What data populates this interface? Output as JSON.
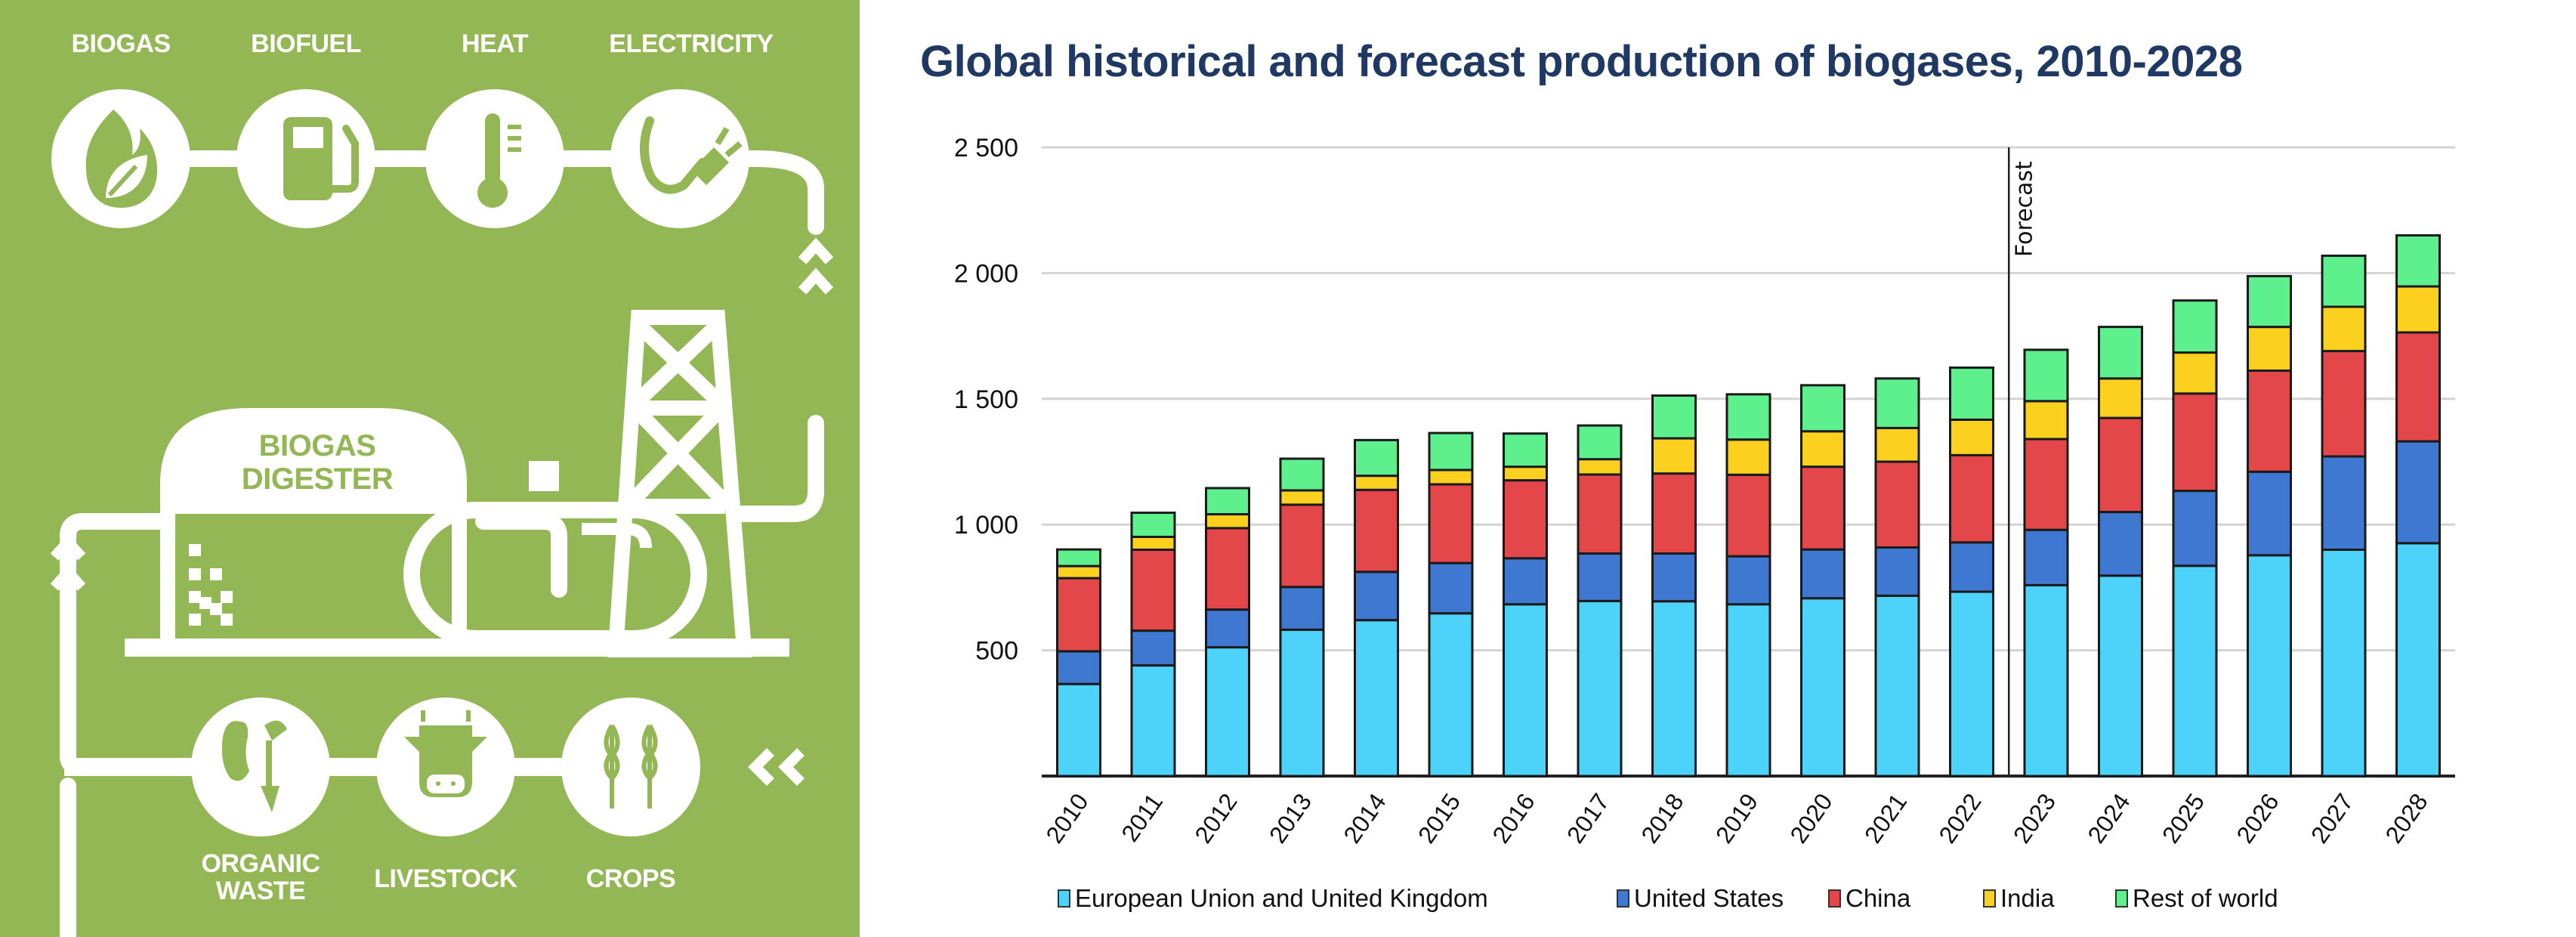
{
  "infographic": {
    "outputs": [
      {
        "label": "BIOGAS",
        "icon": "flame-leaf-icon"
      },
      {
        "label": "BIOFUEL",
        "icon": "fuel-pump-icon"
      },
      {
        "label": "HEAT",
        "icon": "thermometer-icon"
      },
      {
        "label": "ELECTRICITY",
        "icon": "plug-icon"
      }
    ],
    "digester_label_line1": "BIOGAS",
    "digester_label_line2": "DIGESTER",
    "inputs": [
      {
        "label_line1": "ORGANIC",
        "label_line2": "WASTE",
        "icon": "organic-waste-icon"
      },
      {
        "label_line1": "LIVESTOCK",
        "label_line2": "",
        "icon": "cow-icon"
      },
      {
        "label_line1": "CROPS",
        "label_line2": "",
        "icon": "wheat-icon"
      }
    ],
    "colors": {
      "background": "#93b755",
      "foreground": "#ffffff"
    }
  },
  "chart_data": {
    "type": "bar",
    "stacked": true,
    "title": "Global historical and forecast production of biogases, 2010-2028",
    "xlabel": "",
    "ylabel": "",
    "ylim": [
      0,
      2500
    ],
    "yticks": [
      500,
      1000,
      1500,
      2000,
      2500
    ],
    "ytick_labels": [
      "500",
      "1 000",
      "1 500",
      "2 000",
      "2 500"
    ],
    "grid": true,
    "legend_position": "bottom",
    "annotation": {
      "text": "Forecast",
      "between": [
        "2022",
        "2023"
      ]
    },
    "categories": [
      "2010",
      "2011",
      "2012",
      "2013",
      "2014",
      "2015",
      "2016",
      "2017",
      "2018",
      "2019",
      "2020",
      "2021",
      "2022",
      "2023",
      "2024",
      "2025",
      "2026",
      "2027",
      "2028"
    ],
    "series": [
      {
        "name": "European Union and United Kingdom",
        "color": "#4dd2fa",
        "values": [
          366,
          440,
          512,
          582,
          620,
          647,
          683,
          696,
          695,
          683,
          707,
          717,
          733,
          759,
          797,
          836,
          878,
          900,
          926
        ]
      },
      {
        "name": "United States",
        "color": "#3e78d0",
        "values": [
          130,
          138,
          150,
          170,
          192,
          200,
          183,
          189,
          190,
          191,
          194,
          192,
          196,
          220,
          253,
          298,
          332,
          371,
          405
        ]
      },
      {
        "name": "China",
        "color": "#e4474a",
        "values": [
          291,
          322,
          324,
          327,
          326,
          313,
          310,
          314,
          318,
          324,
          329,
          341,
          347,
          361,
          374,
          387,
          402,
          419,
          433
        ]
      },
      {
        "name": "India",
        "color": "#fcd01f",
        "values": [
          48,
          51,
          55,
          57,
          56,
          57,
          54,
          61,
          140,
          140,
          141,
          134,
          141,
          151,
          157,
          163,
          174,
          176,
          183
        ]
      },
      {
        "name": "Rest of world",
        "color": "#5ff08e",
        "values": [
          66,
          96,
          104,
          126,
          142,
          147,
          132,
          134,
          170,
          180,
          183,
          197,
          207,
          204,
          205,
          207,
          202,
          203,
          203
        ]
      }
    ]
  }
}
